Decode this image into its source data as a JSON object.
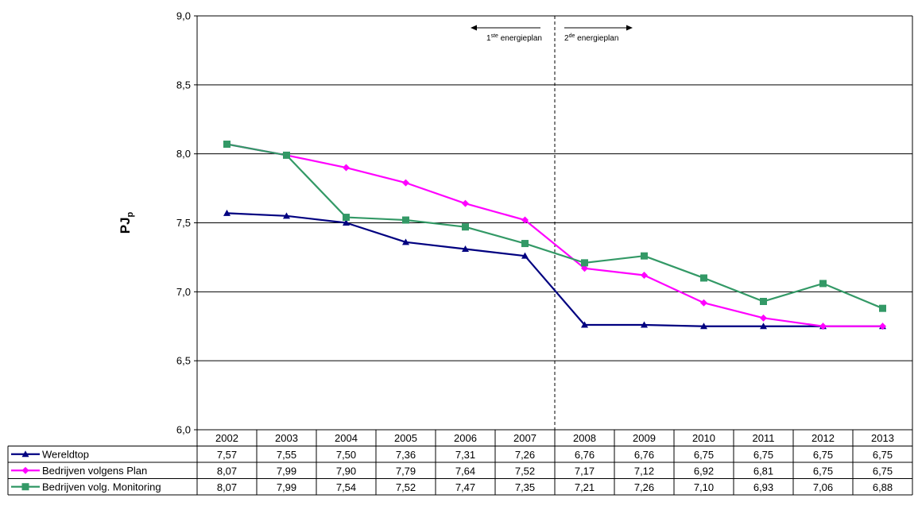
{
  "chart_data": {
    "type": "line",
    "title": "",
    "ylabel": "PJ",
    "ylabel_sub": "p",
    "ylim": [
      6.0,
      9.0
    ],
    "y_ticks": [
      "6,0",
      "6,5",
      "7,0",
      "7,5",
      "8,0",
      "8,5",
      "9,0"
    ],
    "y_tick_values": [
      6.0,
      6.5,
      7.0,
      7.5,
      8.0,
      8.5,
      9.0
    ],
    "categories": [
      "2002",
      "2003",
      "2004",
      "2005",
      "2006",
      "2007",
      "2008",
      "2009",
      "2010",
      "2011",
      "2012",
      "2013"
    ],
    "grid": true,
    "legend": "data-table-left",
    "series": [
      {
        "name": "Wereldtop",
        "color": "#000080",
        "marker": "triangle",
        "values": [
          7.57,
          7.55,
          7.5,
          7.36,
          7.31,
          7.26,
          6.76,
          6.76,
          6.75,
          6.75,
          6.75,
          6.75
        ],
        "labels": [
          "7,57",
          "7,55",
          "7,50",
          "7,36",
          "7,31",
          "7,26",
          "6,76",
          "6,76",
          "6,75",
          "6,75",
          "6,75",
          "6,75"
        ]
      },
      {
        "name": "Bedrijven volgens Plan",
        "color": "#ff00ff",
        "marker": "diamond",
        "values": [
          8.07,
          7.99,
          7.9,
          7.79,
          7.64,
          7.52,
          7.17,
          7.12,
          6.92,
          6.81,
          6.75,
          6.75
        ],
        "labels": [
          "8,07",
          "7,99",
          "7,90",
          "7,79",
          "7,64",
          "7,52",
          "7,17",
          "7,12",
          "6,92",
          "6,81",
          "6,75",
          "6,75"
        ]
      },
      {
        "name": "Bedrijven volg. Monitoring",
        "color": "#339966",
        "marker": "square",
        "values": [
          8.07,
          7.99,
          7.54,
          7.52,
          7.47,
          7.35,
          7.21,
          7.26,
          7.1,
          6.93,
          7.06,
          6.88
        ],
        "labels": [
          "8,07",
          "7,99",
          "7,54",
          "7,52",
          "7,47",
          "7,35",
          "7,21",
          "7,26",
          "7,10",
          "6,93",
          "7,06",
          "6,88"
        ]
      }
    ],
    "annotations": {
      "divider_between": [
        "2007",
        "2008"
      ],
      "left": {
        "base": "1",
        "sup": "ste",
        "text": " energieplan"
      },
      "right": {
        "base": "2",
        "sup": "de",
        "text": " energieplan"
      }
    }
  }
}
